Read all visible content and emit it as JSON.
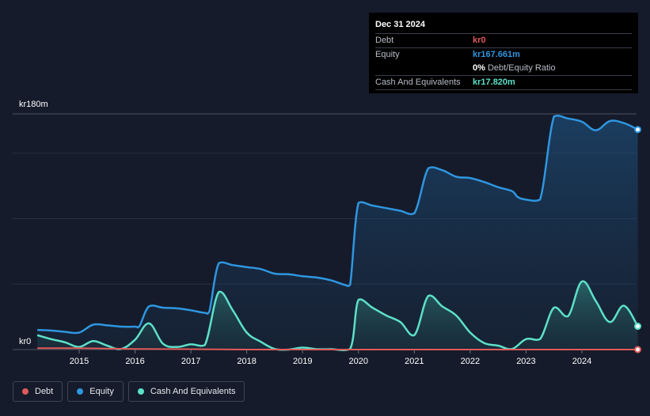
{
  "chart_data": {
    "type": "area",
    "x_ticks": [
      "2015",
      "2016",
      "2017",
      "2018",
      "2019",
      "2020",
      "2021",
      "2022",
      "2023",
      "2024"
    ],
    "y_labels": [
      "kr180m",
      "kr0"
    ],
    "ylim": [
      0,
      180
    ],
    "x_range": [
      2014.25,
      2025.0
    ],
    "series": [
      {
        "name": "Debt",
        "color": "#e05a5a",
        "points": [
          [
            2014.25,
            1
          ],
          [
            2015.0,
            1
          ],
          [
            2016.0,
            0.5
          ],
          [
            2017.0,
            0.3
          ],
          [
            2018.0,
            0
          ],
          [
            2019.0,
            0
          ],
          [
            2020.0,
            0
          ],
          [
            2021.0,
            0
          ],
          [
            2022.0,
            0
          ],
          [
            2023.0,
            0
          ],
          [
            2024.0,
            0
          ],
          [
            2025.0,
            0
          ]
        ]
      },
      {
        "name": "Equity",
        "color": "#2f96e0",
        "points": [
          [
            2014.25,
            15
          ],
          [
            2014.5,
            14.5
          ],
          [
            2014.75,
            13.5
          ],
          [
            2015.0,
            13
          ],
          [
            2015.25,
            19
          ],
          [
            2015.5,
            18.5
          ],
          [
            2015.75,
            17.5
          ],
          [
            2016.0,
            17.5
          ],
          [
            2016.08,
            18
          ],
          [
            2016.25,
            33
          ],
          [
            2016.5,
            32
          ],
          [
            2016.75,
            31.5
          ],
          [
            2017.0,
            30
          ],
          [
            2017.25,
            28
          ],
          [
            2017.33,
            29
          ],
          [
            2017.5,
            66
          ],
          [
            2017.75,
            64.5
          ],
          [
            2018.0,
            63
          ],
          [
            2018.25,
            61.5
          ],
          [
            2018.5,
            58
          ],
          [
            2018.75,
            57.5
          ],
          [
            2019.0,
            56
          ],
          [
            2019.25,
            55
          ],
          [
            2019.5,
            53
          ],
          [
            2019.75,
            49.5
          ],
          [
            2019.85,
            49.5
          ],
          [
            2020.0,
            112
          ],
          [
            2020.25,
            110
          ],
          [
            2020.5,
            108
          ],
          [
            2020.75,
            106
          ],
          [
            2021.0,
            104
          ],
          [
            2021.25,
            138.5
          ],
          [
            2021.5,
            137
          ],
          [
            2021.75,
            132
          ],
          [
            2022.0,
            131
          ],
          [
            2022.25,
            128
          ],
          [
            2022.5,
            124
          ],
          [
            2022.75,
            121
          ],
          [
            2022.85,
            116.5
          ],
          [
            2023.0,
            114.5
          ],
          [
            2023.25,
            114.5
          ],
          [
            2023.5,
            178
          ],
          [
            2023.75,
            176.5
          ],
          [
            2024.0,
            174
          ],
          [
            2024.25,
            167.5
          ],
          [
            2024.5,
            174.5
          ],
          [
            2024.75,
            173
          ],
          [
            2025.0,
            168
          ]
        ]
      },
      {
        "name": "Cash And Equivalents",
        "color": "#5de0c8",
        "points": [
          [
            2014.25,
            11
          ],
          [
            2014.5,
            8
          ],
          [
            2014.75,
            5.5
          ],
          [
            2015.0,
            2
          ],
          [
            2015.25,
            6.5
          ],
          [
            2015.5,
            3
          ],
          [
            2015.75,
            0.5
          ],
          [
            2016.0,
            7.5
          ],
          [
            2016.25,
            20
          ],
          [
            2016.5,
            4.5
          ],
          [
            2016.75,
            2
          ],
          [
            2017.0,
            4
          ],
          [
            2017.25,
            3.5
          ],
          [
            2017.5,
            44
          ],
          [
            2017.75,
            30
          ],
          [
            2018.0,
            13
          ],
          [
            2018.25,
            6
          ],
          [
            2018.5,
            0.5
          ],
          [
            2018.75,
            0
          ],
          [
            2019.0,
            1.5
          ],
          [
            2019.25,
            0.3
          ],
          [
            2019.5,
            0.3
          ],
          [
            2019.85,
            0.5
          ],
          [
            2020.0,
            38
          ],
          [
            2020.25,
            32
          ],
          [
            2020.5,
            26
          ],
          [
            2020.75,
            21
          ],
          [
            2021.0,
            11
          ],
          [
            2021.25,
            41
          ],
          [
            2021.5,
            33
          ],
          [
            2021.75,
            26
          ],
          [
            2022.0,
            13
          ],
          [
            2022.25,
            5
          ],
          [
            2022.5,
            3
          ],
          [
            2022.75,
            0.5
          ],
          [
            2023.0,
            8
          ],
          [
            2023.25,
            8
          ],
          [
            2023.5,
            32
          ],
          [
            2023.75,
            25.5
          ],
          [
            2024.0,
            52
          ],
          [
            2024.25,
            37
          ],
          [
            2024.5,
            21
          ],
          [
            2024.75,
            33.5
          ],
          [
            2025.0,
            17.8
          ]
        ]
      }
    ],
    "legend": [
      "Debt",
      "Equity",
      "Cash And Equivalents"
    ],
    "legend_position": "bottom-left",
    "grid": true
  },
  "tooltip": {
    "date": "Dec 31 2024",
    "rows": [
      {
        "label": "Debt",
        "value": "kr0",
        "color": "#e05a5a"
      },
      {
        "label": "Equity",
        "value": "kr167.661m",
        "color": "#2f96e0"
      },
      {
        "label": "",
        "value": "0%",
        "suffix": "Debt/Equity Ratio",
        "color": "#ffffff"
      },
      {
        "label": "Cash And Equivalents",
        "value": "kr17.820m",
        "color": "#5de0c8"
      }
    ]
  }
}
